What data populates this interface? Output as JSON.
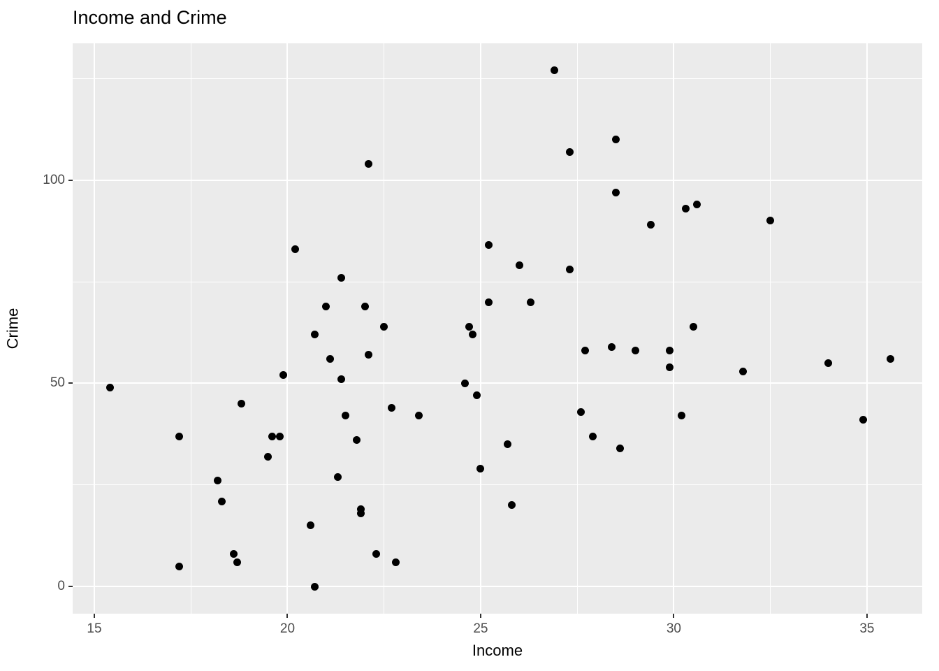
{
  "chart_data": {
    "type": "scatter",
    "title": "Income and Crime",
    "xlabel": "Income",
    "ylabel": "Crime",
    "x_ticks": [
      15,
      20,
      25,
      30,
      35
    ],
    "y_ticks": [
      0,
      50,
      100
    ],
    "x_minor_ticks": [
      17.5,
      22.5,
      27.5,
      32.5
    ],
    "y_minor_ticks": [
      25,
      75,
      125
    ],
    "xlim": [
      14.44,
      36.43
    ],
    "ylim": [
      -6.7,
      133.7
    ],
    "grid": "on",
    "legend": "none",
    "theme": "ggplot-gray",
    "panel_background": "#EBEBEB",
    "gridline_color": "#FFFFFF",
    "point_color": "#000000",
    "tick_label_color": "#4D4D4D",
    "points": [
      [
        15.4,
        49
      ],
      [
        17.2,
        37
      ],
      [
        17.2,
        5
      ],
      [
        18.2,
        26
      ],
      [
        18.3,
        21
      ],
      [
        18.6,
        8
      ],
      [
        18.7,
        6
      ],
      [
        18.8,
        45
      ],
      [
        19.5,
        32
      ],
      [
        19.6,
        37
      ],
      [
        19.8,
        37
      ],
      [
        19.9,
        52
      ],
      [
        20.2,
        83
      ],
      [
        20.6,
        15
      ],
      [
        20.7,
        62
      ],
      [
        20.7,
        0
      ],
      [
        21.0,
        69
      ],
      [
        21.1,
        56
      ],
      [
        21.3,
        27
      ],
      [
        21.4,
        76
      ],
      [
        21.4,
        51
      ],
      [
        21.5,
        42
      ],
      [
        21.8,
        36
      ],
      [
        21.9,
        19
      ],
      [
        21.9,
        18
      ],
      [
        22.0,
        69
      ],
      [
        22.1,
        104
      ],
      [
        22.1,
        57
      ],
      [
        22.3,
        8
      ],
      [
        22.5,
        64
      ],
      [
        22.7,
        44
      ],
      [
        22.8,
        6
      ],
      [
        23.4,
        42
      ],
      [
        24.6,
        50
      ],
      [
        24.7,
        64
      ],
      [
        24.8,
        62
      ],
      [
        24.9,
        47
      ],
      [
        25.0,
        29
      ],
      [
        25.2,
        84
      ],
      [
        25.2,
        70
      ],
      [
        25.7,
        35
      ],
      [
        25.8,
        20
      ],
      [
        26.0,
        79
      ],
      [
        26.3,
        70
      ],
      [
        26.9,
        127
      ],
      [
        27.3,
        107
      ],
      [
        27.3,
        78
      ],
      [
        27.6,
        43
      ],
      [
        27.7,
        58
      ],
      [
        27.9,
        37
      ],
      [
        28.4,
        59
      ],
      [
        28.5,
        110
      ],
      [
        28.5,
        97
      ],
      [
        28.6,
        34
      ],
      [
        29.0,
        58
      ],
      [
        29.4,
        89
      ],
      [
        29.9,
        58
      ],
      [
        29.9,
        54
      ],
      [
        30.2,
        42
      ],
      [
        30.3,
        93
      ],
      [
        30.5,
        64
      ],
      [
        30.6,
        94
      ],
      [
        31.8,
        53
      ],
      [
        32.5,
        90
      ],
      [
        34.0,
        55
      ],
      [
        34.9,
        41
      ],
      [
        35.6,
        56
      ]
    ]
  }
}
